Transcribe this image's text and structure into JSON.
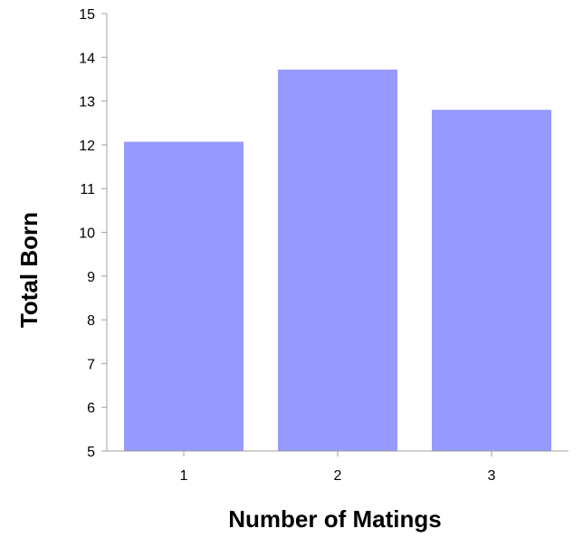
{
  "chart_data": {
    "type": "bar",
    "title": "",
    "xlabel": "Number of Matings",
    "ylabel": "Total Born",
    "categories": [
      "1",
      "2",
      "3"
    ],
    "values": [
      12.07,
      13.72,
      12.8
    ],
    "ylim": [
      5,
      15
    ],
    "yticks": [
      5,
      6,
      7,
      8,
      9,
      10,
      11,
      12,
      13,
      14,
      15
    ],
    "grid": false,
    "legend": "none",
    "bar_color": "#9699FF",
    "axis_color": "#A0A0A0"
  }
}
